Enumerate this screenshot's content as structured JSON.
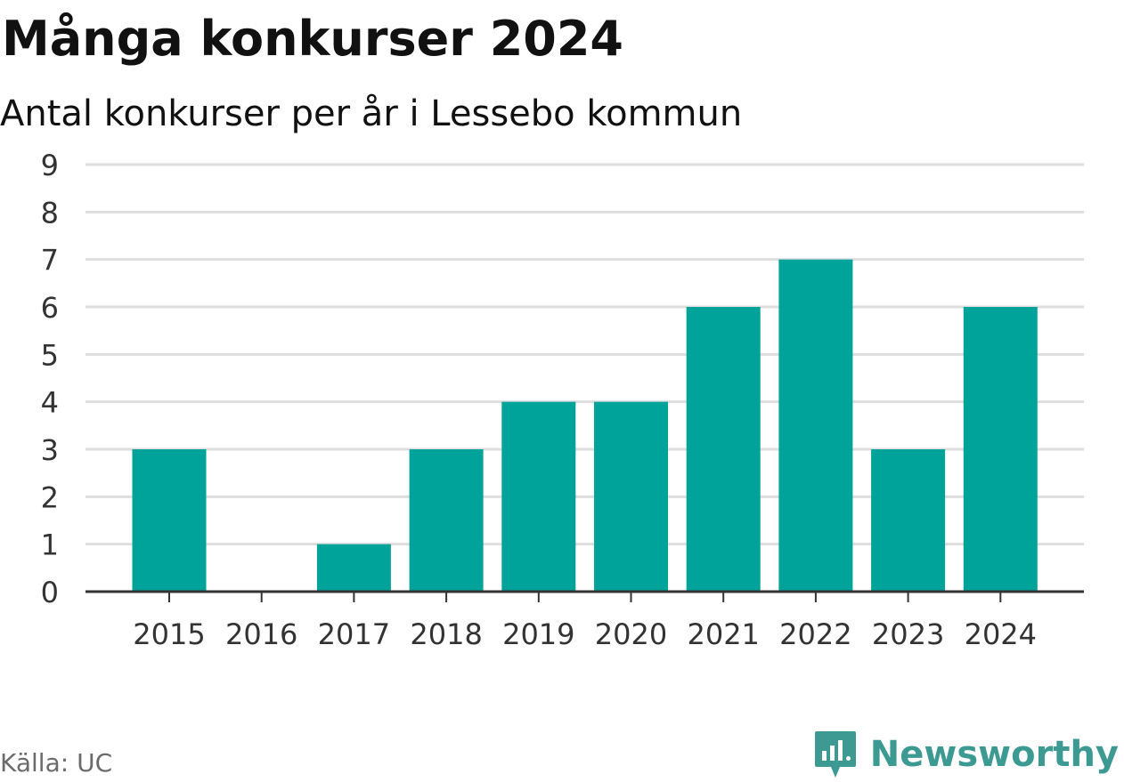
{
  "header": {
    "title": "Många konkurser 2024",
    "subtitle": "Antal konkurser per år i Lessebo kommun"
  },
  "footer": {
    "source": "Källa: UC",
    "brand_name": "Newsworthy"
  },
  "colors": {
    "bar": "#00a39a",
    "grid": "#dddddd",
    "axis": "#333333",
    "tick_text": "#333333",
    "brand": "#3d9a93"
  },
  "icons": {
    "brand_logo": "newsworthy-logo-icon"
  },
  "chart_data": {
    "type": "bar",
    "categories": [
      "2015",
      "2016",
      "2017",
      "2018",
      "2019",
      "2020",
      "2021",
      "2022",
      "2023",
      "2024"
    ],
    "values": [
      3,
      0,
      1,
      3,
      4,
      4,
      6,
      7,
      3,
      6
    ],
    "title": "Många konkurser 2024",
    "subtitle": "Antal konkurser per år i Lessebo kommun",
    "xlabel": "",
    "ylabel": "",
    "ylim": [
      0,
      9
    ],
    "yticks": [
      0,
      1,
      2,
      3,
      4,
      5,
      6,
      7,
      8,
      9
    ],
    "grid": true,
    "legend": "none"
  }
}
